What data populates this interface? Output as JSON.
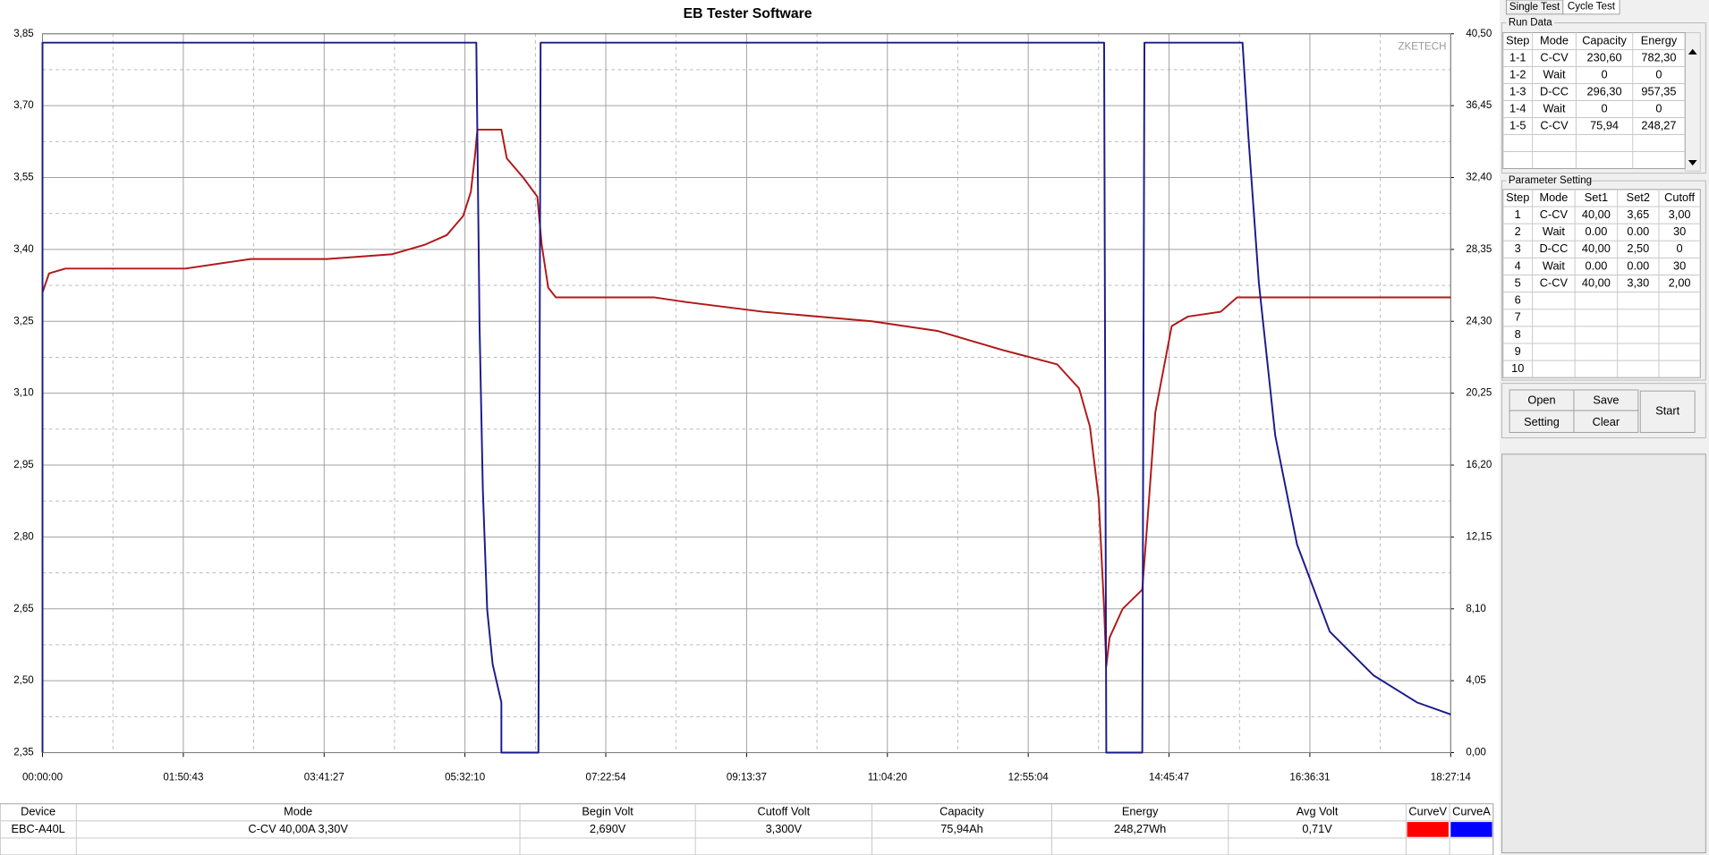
{
  "chart_data": {
    "type": "line",
    "title": "EB Tester Software",
    "watermark": "ZKETECH",
    "xlim": [
      0,
      66434
    ],
    "xticks": [
      {
        "value": 0,
        "label": "00:00:00"
      },
      {
        "value": 6643,
        "label": "01:50:43"
      },
      {
        "value": 13287,
        "label": "03:41:27"
      },
      {
        "value": 19930,
        "label": "05:32:10"
      },
      {
        "value": 26574,
        "label": "07:22:54"
      },
      {
        "value": 33217,
        "label": "09:13:37"
      },
      {
        "value": 39860,
        "label": "11:04:20"
      },
      {
        "value": 46504,
        "label": "12:55:04"
      },
      {
        "value": 53147,
        "label": "14:45:47"
      },
      {
        "value": 59791,
        "label": "16:36:31"
      },
      {
        "value": 66434,
        "label": "18:27:14"
      }
    ],
    "ylim": [
      2.35,
      3.85
    ],
    "yticks": [
      {
        "value": 3.85,
        "label": "3,85"
      },
      {
        "value": 3.7,
        "label": "3,70"
      },
      {
        "value": 3.55,
        "label": "3,55"
      },
      {
        "value": 3.4,
        "label": "3,40"
      },
      {
        "value": 3.25,
        "label": "3,25"
      },
      {
        "value": 3.1,
        "label": "3,10"
      },
      {
        "value": 2.95,
        "label": "2,95"
      },
      {
        "value": 2.8,
        "label": "2,80"
      },
      {
        "value": 2.65,
        "label": "2,65"
      },
      {
        "value": 2.5,
        "label": "2,50"
      },
      {
        "value": 2.35,
        "label": "2,35"
      }
    ],
    "y2lim": [
      0,
      40.5
    ],
    "y2ticks": [
      {
        "value": 40.5,
        "label": "40,50"
      },
      {
        "value": 36.45,
        "label": "36,45"
      },
      {
        "value": 32.4,
        "label": "32,40"
      },
      {
        "value": 28.35,
        "label": "28,35"
      },
      {
        "value": 24.3,
        "label": "24,30"
      },
      {
        "value": 20.25,
        "label": "20,25"
      },
      {
        "value": 16.2,
        "label": "16,20"
      },
      {
        "value": 12.15,
        "label": "12,15"
      },
      {
        "value": 8.1,
        "label": "8,10"
      },
      {
        "value": 4.05,
        "label": "4,05"
      },
      {
        "value": 0,
        "label": "0,00"
      }
    ],
    "grid": true,
    "series": [
      {
        "name": "CurveV",
        "color": "#b01818",
        "legend_color": "#ff0000",
        "x": [
          0,
          309,
          1080,
          6736,
          9821,
          13421,
          16506,
          18048,
          19076,
          19848,
          20208,
          20413,
          20516,
          21648,
          21905,
          22676,
          23345,
          23550,
          23859,
          24219,
          28846,
          30389,
          33989,
          39131,
          42216,
          45302,
          47873,
          48901,
          49415,
          49827,
          50084,
          50187,
          50341,
          50958,
          51884,
          52089,
          52500,
          53272,
          54043,
          55586,
          56357,
          66434
        ],
        "values": [
          3.31,
          3.35,
          3.36,
          3.36,
          3.38,
          3.38,
          3.39,
          3.41,
          3.43,
          3.47,
          3.52,
          3.6,
          3.65,
          3.65,
          3.59,
          3.55,
          3.51,
          3.41,
          3.32,
          3.3,
          3.3,
          3.29,
          3.27,
          3.25,
          3.23,
          3.19,
          3.16,
          3.11,
          3.03,
          2.88,
          2.65,
          2.53,
          2.59,
          2.65,
          2.69,
          2.81,
          3.06,
          3.24,
          3.26,
          3.27,
          3.3,
          3.3
        ]
      },
      {
        "name": "CurveA",
        "color": "#1a1a8c",
        "legend_color": "#0000ff",
        "axis": "y2",
        "x": [
          0,
          0,
          20465,
          20619,
          20774,
          20979,
          21236,
          21648,
          21648,
          23396,
          23499,
          50084,
          50187,
          51884,
          51986,
          56614,
          56871,
          57385,
          58157,
          59185,
          60728,
          62784,
          64841,
          66434
        ],
        "values": [
          0,
          40,
          40,
          24,
          14.8,
          8.05,
          4.98,
          2.83,
          0,
          0,
          40,
          40,
          0,
          0,
          40,
          40,
          35.04,
          26.45,
          17.86,
          11.73,
          6.82,
          4.36,
          2.83,
          2.15
        ]
      }
    ]
  },
  "tabs": [
    "Single Test",
    "Cycle Test"
  ],
  "run_data": {
    "title": "Run Data",
    "columns": [
      "Step",
      "Mode",
      "Capacity",
      "Energy"
    ],
    "rows": [
      [
        "1-1",
        "C-CV",
        "230,60",
        "782,30"
      ],
      [
        "1-2",
        "Wait",
        "0",
        "0"
      ],
      [
        "1-3",
        "D-CC",
        "296,30",
        "957,35"
      ],
      [
        "1-4",
        "Wait",
        "0",
        "0"
      ],
      [
        "1-5",
        "C-CV",
        "75,94",
        "248,27"
      ]
    ]
  },
  "parameter_setting": {
    "title": "Parameter Setting",
    "columns": [
      "Step",
      "Mode",
      "Set1",
      "Set2",
      "Cutoff"
    ],
    "rows": [
      [
        "1",
        "C-CV",
        "40,00",
        "3,65",
        "3,00"
      ],
      [
        "2",
        "Wait",
        "0.00",
        "0.00",
        "30"
      ],
      [
        "3",
        "D-CC",
        "40,00",
        "2,50",
        "0"
      ],
      [
        "4",
        "Wait",
        "0.00",
        "0.00",
        "30"
      ],
      [
        "5",
        "C-CV",
        "40,00",
        "3,30",
        "2,00"
      ],
      [
        "6"
      ],
      [
        "7"
      ],
      [
        "8"
      ],
      [
        "9"
      ],
      [
        "10"
      ]
    ]
  },
  "buttons": {
    "open": "Open",
    "save": "Save",
    "setting": "Setting",
    "clear": "Clear",
    "start": "Start"
  },
  "status": {
    "headers": [
      "Device",
      "Mode",
      "Begin Volt",
      "Cutoff Volt",
      "Capacity",
      "Energy",
      "Avg Volt"
    ],
    "values": [
      "EBC-A40L",
      "C-CV  40,00A  3,30V",
      "2,690V",
      "3,300V",
      "75,94Ah",
      "248,27Wh",
      "0,71V"
    ]
  }
}
